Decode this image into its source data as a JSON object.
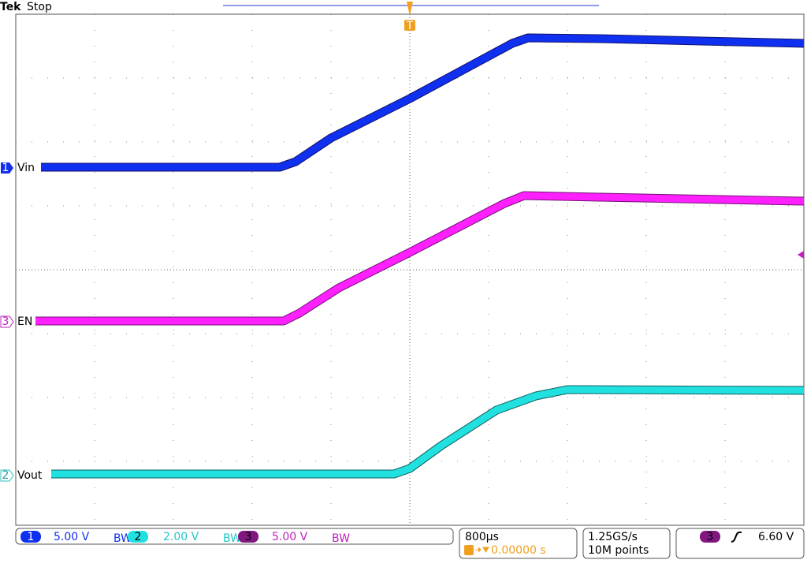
{
  "header": {
    "brand": "Tek",
    "status": "Stop"
  },
  "trigger_marker": "T",
  "channels": [
    {
      "number": "1",
      "label": "Vin",
      "scale": "5.00 V"
    },
    {
      "number": "2",
      "label": "Vout",
      "scale": "2.00 V"
    },
    {
      "number": "3",
      "label": "EN",
      "scale": "5.00 V"
    }
  ],
  "timebase": {
    "scale": "800µs",
    "position": "0.00000 s"
  },
  "acquisition": {
    "rate": "1.25GS/s",
    "length": "10M points"
  },
  "trigger": {
    "source": "3",
    "level": "6.60 V"
  }
}
